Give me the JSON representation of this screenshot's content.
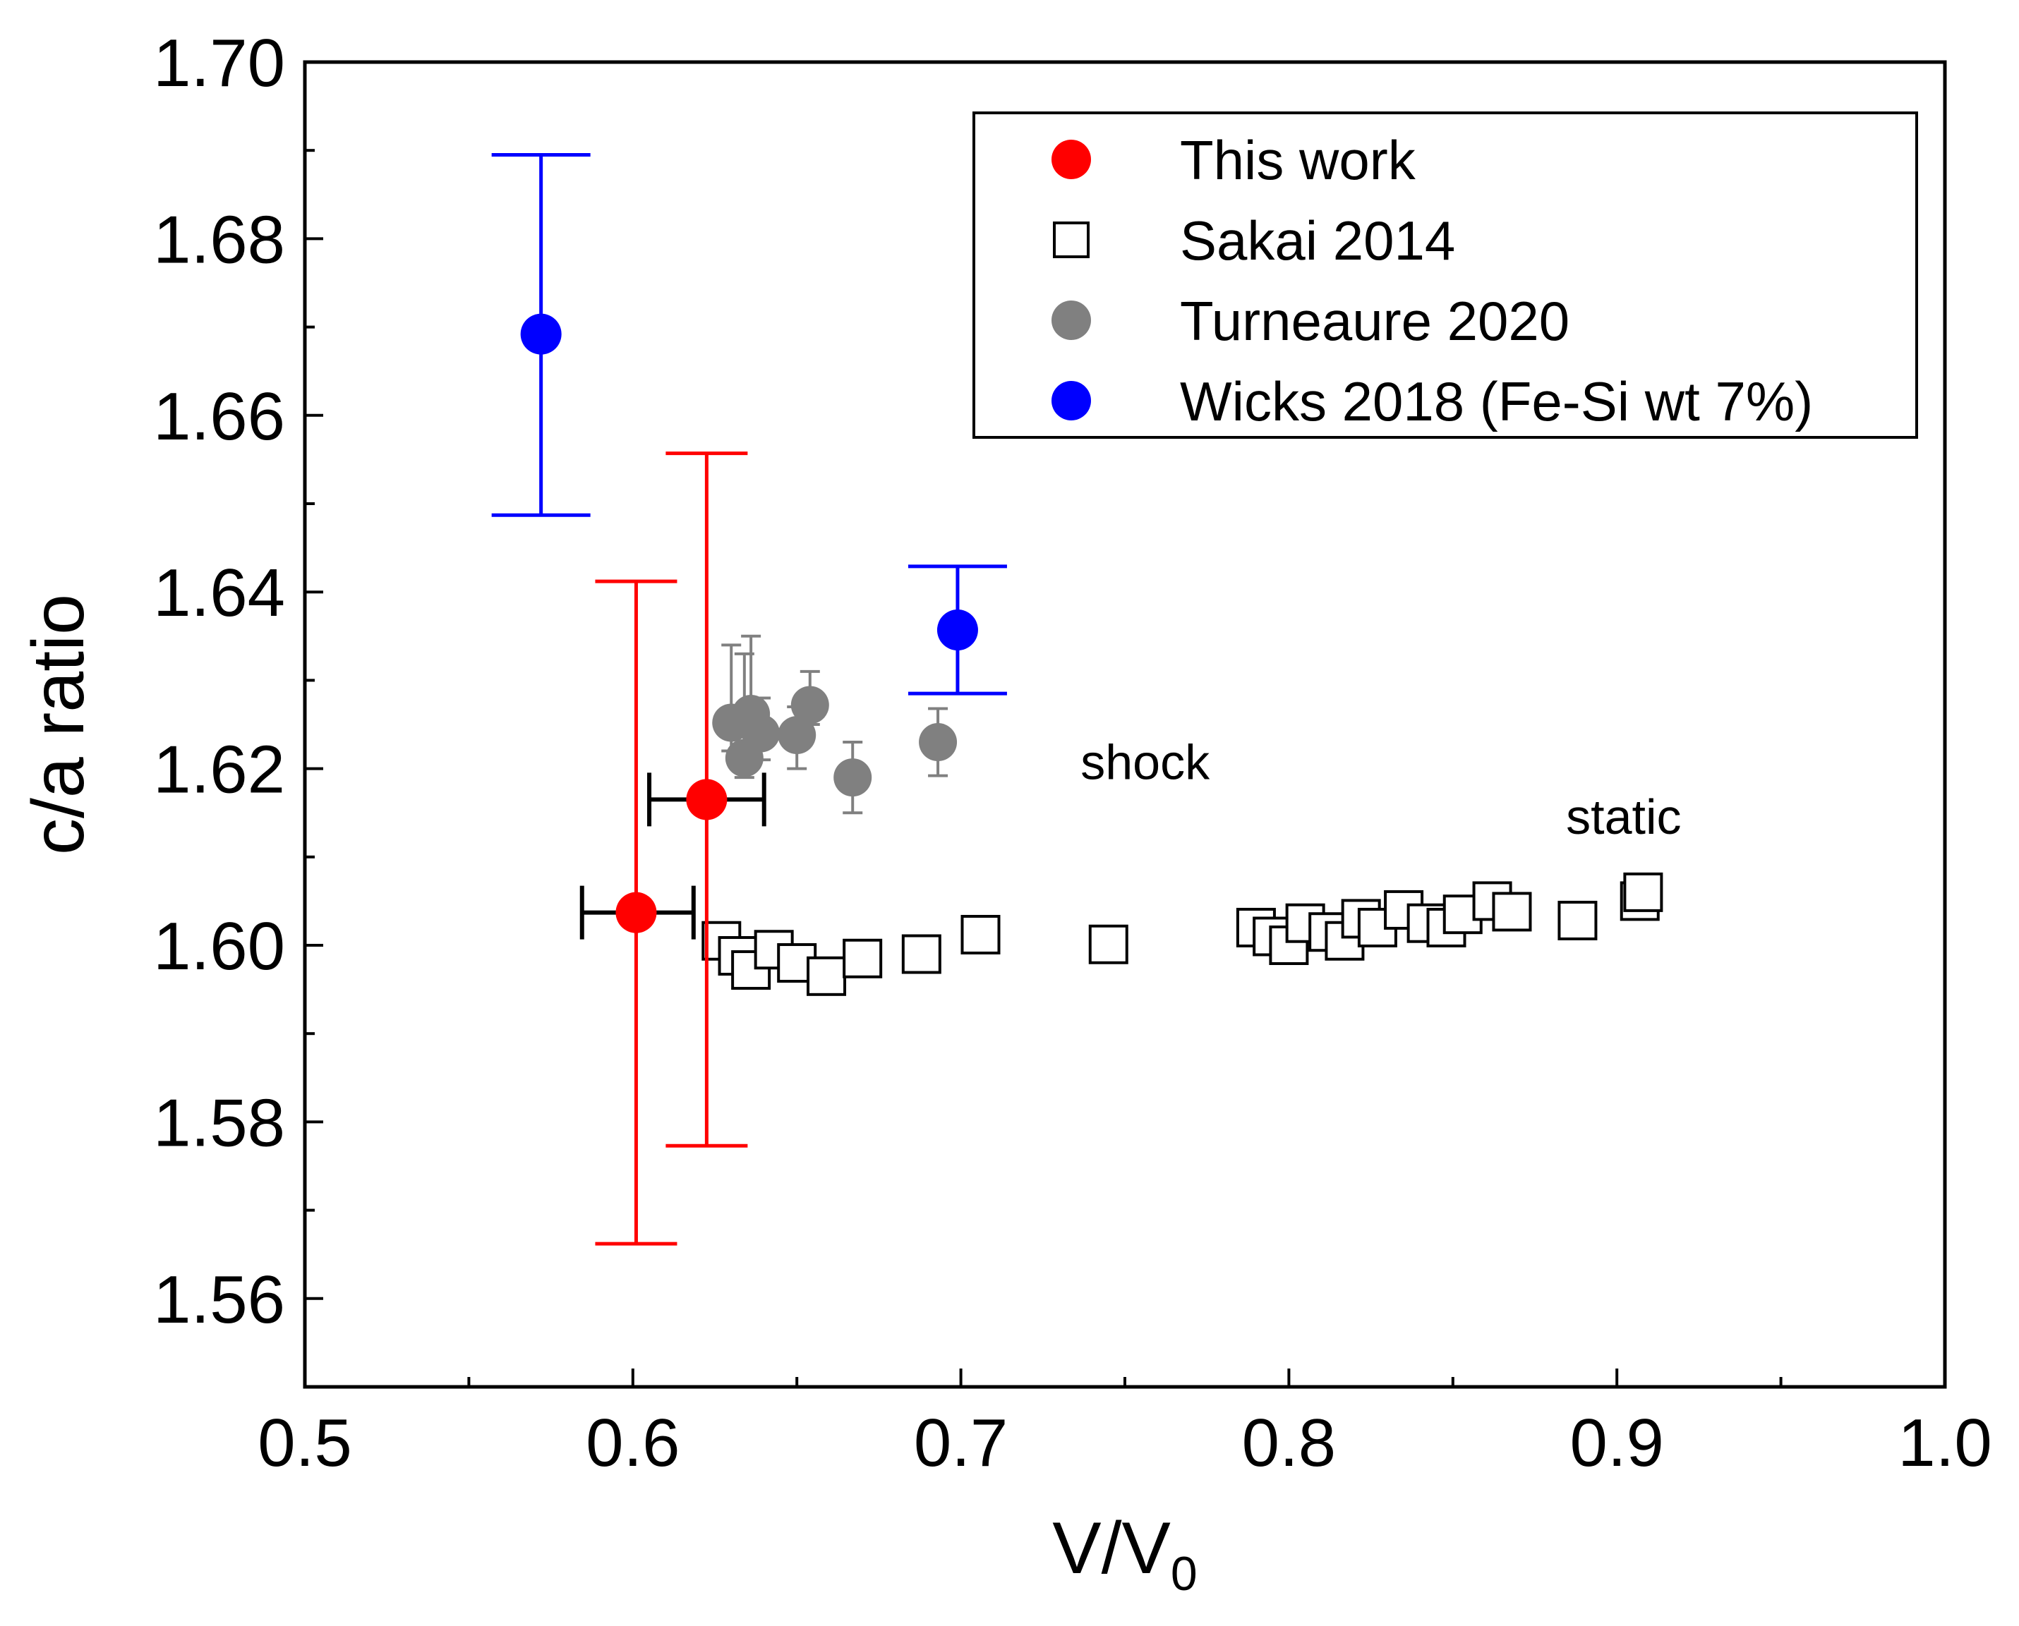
{
  "chart_data": {
    "type": "scatter",
    "title": "",
    "xlabel_main": "V/V",
    "xlabel_sub": "0",
    "ylabel": "c/a ratio",
    "xlim": [
      0.5,
      1.0
    ],
    "ylim": [
      1.55,
      1.7
    ],
    "x_ticks": [
      {
        "value": 0.5,
        "label": "0.5"
      },
      {
        "value": 0.6,
        "label": "0.6"
      },
      {
        "value": 0.7,
        "label": "0.7"
      },
      {
        "value": 0.8,
        "label": "0.8"
      },
      {
        "value": 0.9,
        "label": "0.9"
      },
      {
        "value": 1.0,
        "label": "1.0"
      }
    ],
    "y_ticks": [
      {
        "value": 1.56,
        "label": "1.56"
      },
      {
        "value": 1.58,
        "label": "1.58"
      },
      {
        "value": 1.6,
        "label": "1.60"
      },
      {
        "value": 1.62,
        "label": "1.62"
      },
      {
        "value": 1.64,
        "label": "1.64"
      },
      {
        "value": 1.66,
        "label": "1.66"
      },
      {
        "value": 1.68,
        "label": "1.68"
      },
      {
        "value": 1.7,
        "label": "1.70"
      }
    ],
    "legend_position": "top-right",
    "series": [
      {
        "name": "This work",
        "marker": "filled-circle",
        "color": "#ff0000",
        "xerr_color": "#000000",
        "points": [
          {
            "x": 0.601,
            "y": 1.6037,
            "yerr": [
              1.5662,
              1.6412
            ],
            "xerr": [
              0.5845,
              0.6185
            ]
          },
          {
            "x": 0.6225,
            "y": 1.6165,
            "yerr": [
              1.5773,
              1.6557
            ],
            "xerr": [
              0.605,
              0.64
            ]
          }
        ]
      },
      {
        "name": "Sakai 2014",
        "marker": "open-square",
        "color": "#000000",
        "points": [
          {
            "x": 0.627,
            "y": 1.6005
          },
          {
            "x": 0.632,
            "y": 1.5988
          },
          {
            "x": 0.636,
            "y": 1.5972
          },
          {
            "x": 0.643,
            "y": 1.5995
          },
          {
            "x": 0.65,
            "y": 1.598
          },
          {
            "x": 0.659,
            "y": 1.5965
          },
          {
            "x": 0.67,
            "y": 1.5985
          },
          {
            "x": 0.688,
            "y": 1.599
          },
          {
            "x": 0.706,
            "y": 1.6012
          },
          {
            "x": 0.745,
            "y": 1.6001
          },
          {
            "x": 0.79,
            "y": 1.602
          },
          {
            "x": 0.795,
            "y": 1.601
          },
          {
            "x": 0.8,
            "y": 1.6
          },
          {
            "x": 0.805,
            "y": 1.6025
          },
          {
            "x": 0.812,
            "y": 1.6015
          },
          {
            "x": 0.817,
            "y": 1.6005
          },
          {
            "x": 0.822,
            "y": 1.603
          },
          {
            "x": 0.827,
            "y": 1.602
          },
          {
            "x": 0.835,
            "y": 1.604
          },
          {
            "x": 0.842,
            "y": 1.6025
          },
          {
            "x": 0.848,
            "y": 1.602
          },
          {
            "x": 0.853,
            "y": 1.6035
          },
          {
            "x": 0.862,
            "y": 1.605
          },
          {
            "x": 0.868,
            "y": 1.6038
          },
          {
            "x": 0.888,
            "y": 1.6028
          },
          {
            "x": 0.907,
            "y": 1.605
          },
          {
            "x": 0.908,
            "y": 1.606
          }
        ]
      },
      {
        "name": "Turneaure 2020",
        "marker": "filled-circle",
        "color": "#808080",
        "points": [
          {
            "x": 0.63,
            "y": 1.6252,
            "yerr": [
              1.622,
              1.634
            ]
          },
          {
            "x": 0.634,
            "y": 1.6212,
            "yerr": [
              1.619,
              1.633
            ]
          },
          {
            "x": 0.636,
            "y": 1.6262,
            "yerr": [
              1.623,
              1.635
            ]
          },
          {
            "x": 0.639,
            "y": 1.624,
            "yerr": [
              1.621,
              1.628
            ]
          },
          {
            "x": 0.65,
            "y": 1.6238,
            "yerr": [
              1.62,
              1.627
            ]
          },
          {
            "x": 0.654,
            "y": 1.6272,
            "yerr": [
              1.625,
              1.631
            ]
          },
          {
            "x": 0.667,
            "y": 1.619,
            "yerr": [
              1.615,
              1.623
            ]
          },
          {
            "x": 0.693,
            "y": 1.623,
            "yerr": [
              1.6192,
              1.6268
            ]
          }
        ]
      },
      {
        "name": "Wicks 2018 (Fe-Si wt 7%)",
        "marker": "filled-circle",
        "color": "#0000ff",
        "points": [
          {
            "x": 0.572,
            "y": 1.6692,
            "yerr": [
              1.6487,
              1.6895
            ]
          },
          {
            "x": 0.699,
            "y": 1.6357,
            "yerr": [
              1.6285,
              1.6429
            ]
          }
        ]
      }
    ],
    "annotations": [
      {
        "text": "shock",
        "x": 0.7365,
        "y": 1.6188
      },
      {
        "text": "static",
        "x": 0.8845,
        "y": 1.6126
      }
    ]
  }
}
